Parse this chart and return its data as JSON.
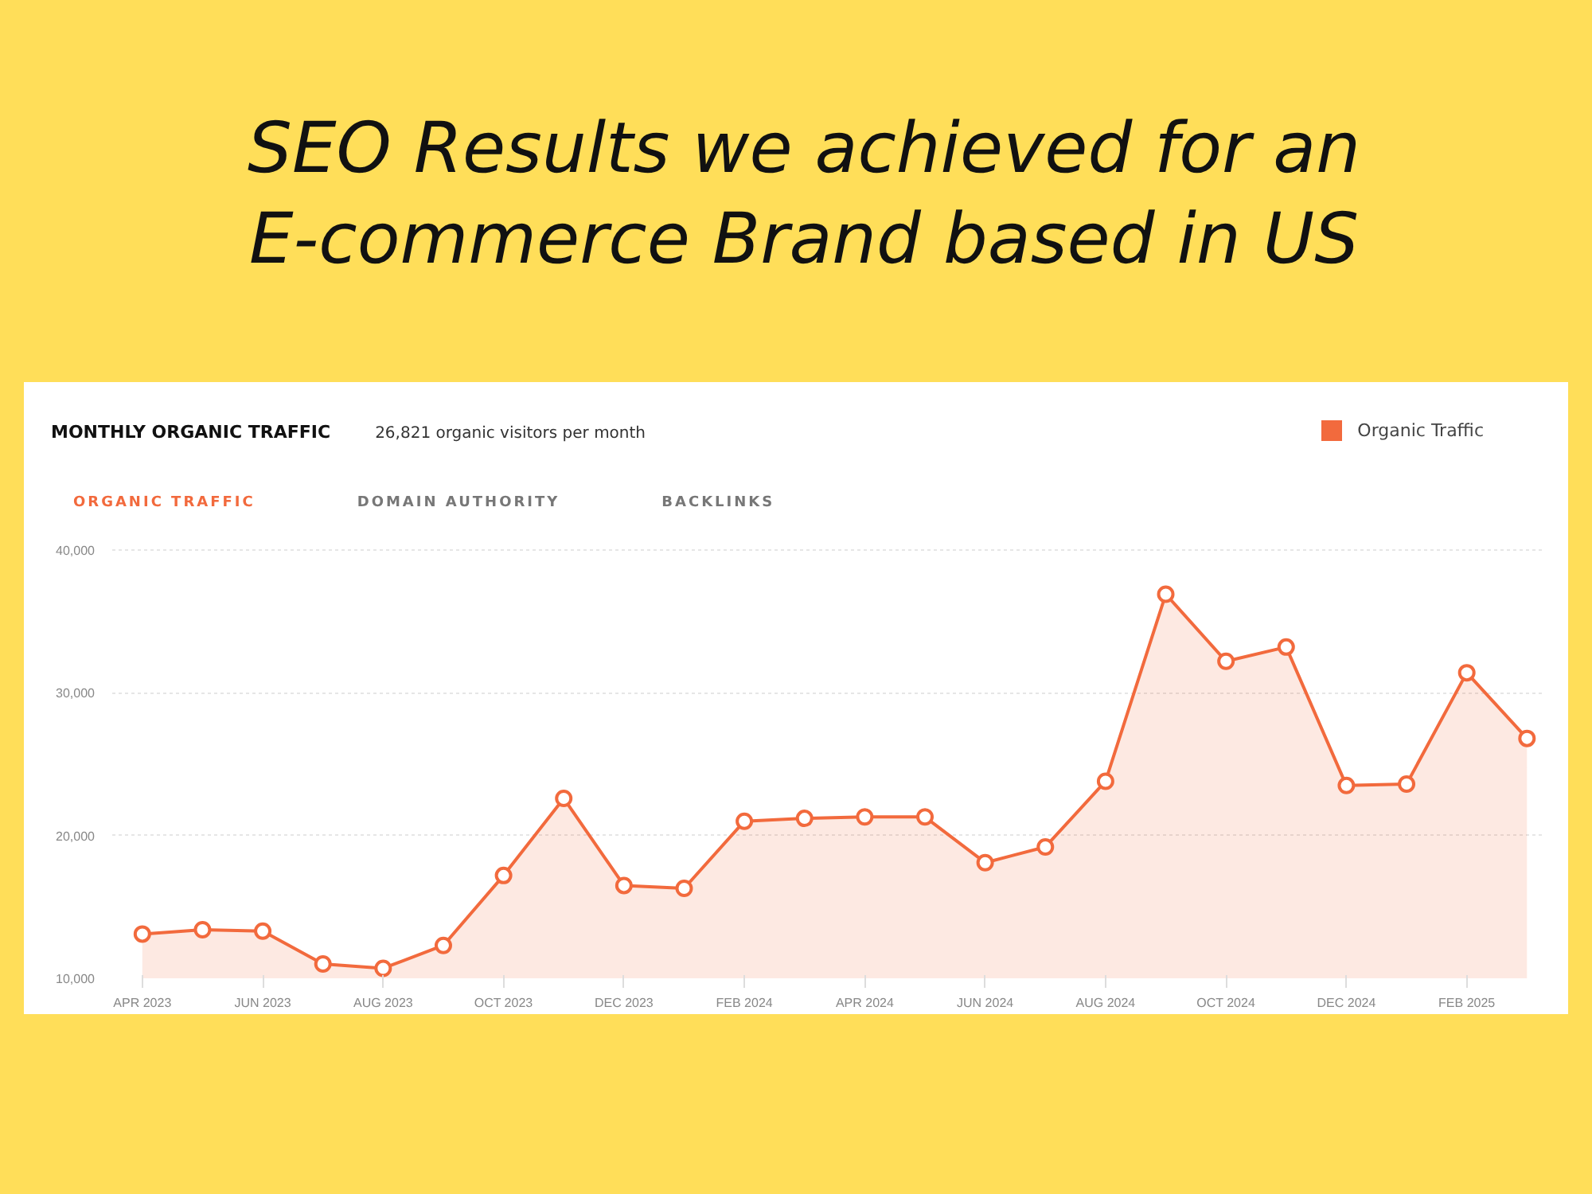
{
  "chart_data": {
    "type": "area",
    "title": "SEO Results we achieved for an\nE-commerce Brand based in US",
    "subtitle": "MONTHLY ORGANIC TRAFFIC",
    "annotations": [
      "26,821 organic visitors per month",
      "ORGANIC TRAFFIC",
      "DOMAIN AUTHORITY",
      "BACKLINKS"
    ],
    "categories": [
      "APR 2023",
      null,
      "JUN 2023",
      null,
      "AUG 2023",
      null,
      "OCT 2023",
      null,
      "DEC 2023",
      null,
      "FEB 2024",
      null,
      "APR 2024",
      null,
      "JUN 2024",
      null,
      "AUG 2024",
      null,
      "OCT 2024",
      null,
      "DEC 2024",
      null,
      "FEB 2025",
      null
    ],
    "series": [
      {
        "name": "Organic Traffic",
        "color": "#f26a3d",
        "values": [
          13100,
          13400,
          13300,
          11000,
          10700,
          12300,
          17200,
          22600,
          16500,
          16300,
          21000,
          21200,
          21300,
          21300,
          18100,
          19200,
          23800,
          36900,
          32200,
          33200,
          23500,
          23600,
          31400,
          26800
        ]
      }
    ],
    "ylim": [
      10000,
      42000
    ],
    "yticks": [
      {
        "value": 10000,
        "label": "10,000"
      },
      {
        "value": 20000,
        "label": "20,000"
      },
      {
        "value": 30000,
        "label": "30,000"
      },
      {
        "value": 40000,
        "label": "40,000"
      }
    ],
    "grid": "y",
    "legend": "top right",
    "marker": "circle",
    "line_style": "solid"
  }
}
